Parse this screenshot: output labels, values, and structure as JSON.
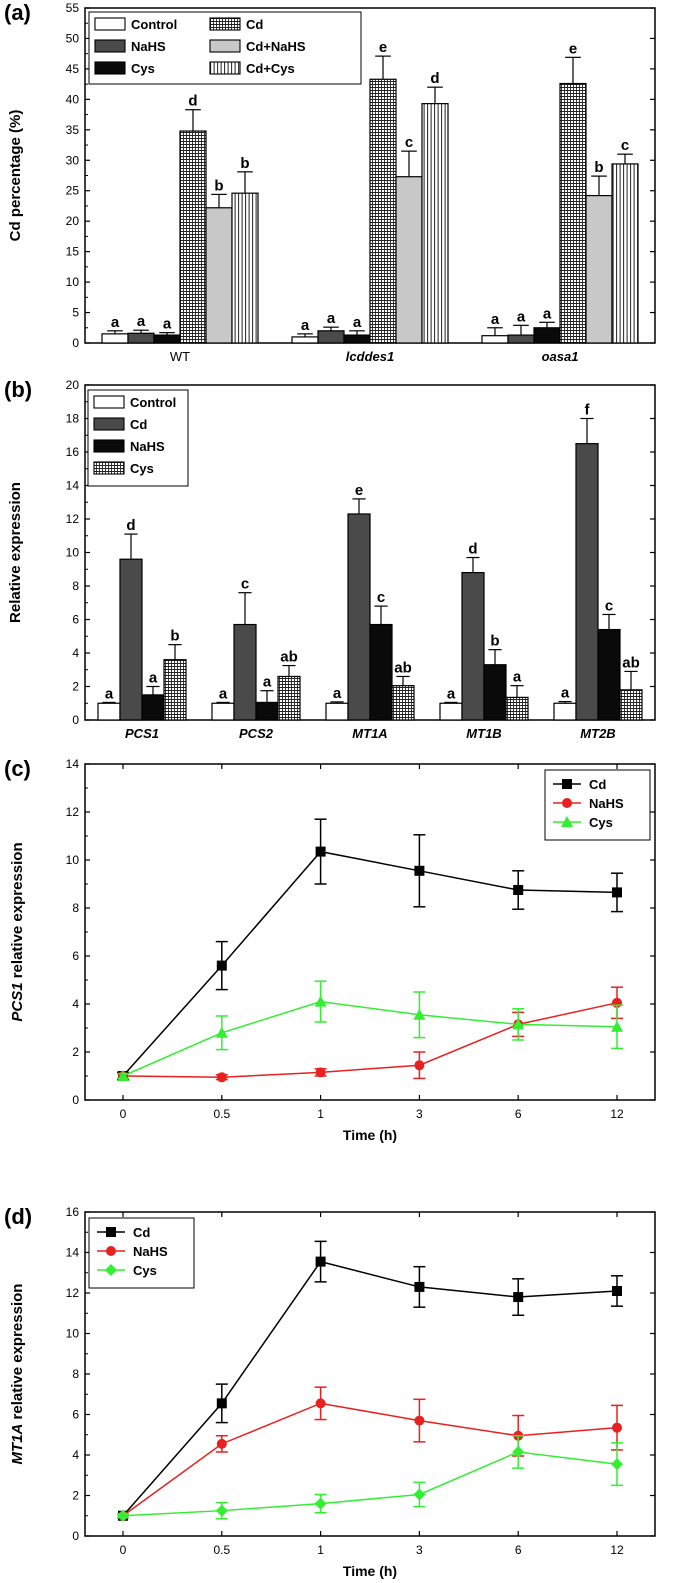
{
  "colors": {
    "control": "#ffffff",
    "nahs_bar": "#4a4a4a",
    "cys_bar": "#0a0a0a",
    "cd_nahs": "#c8c8c8",
    "dark_cd": "#474747",
    "cd_line": "#000000",
    "nahs_line": "#e8201f",
    "cys_line": "#33ee33"
  },
  "chart_data": [
    {
      "type": "bar",
      "panel_label": "(a)",
      "ylabel": "Cd percentage (%)",
      "xlabel": "",
      "ylim": [
        0,
        55
      ],
      "yticks": [
        "0",
        "5",
        "10",
        "15",
        "20",
        "25",
        "30",
        "35",
        "40",
        "45",
        "50",
        "55"
      ],
      "categories": [
        "WT",
        "lcddes1",
        "oasa1"
      ],
      "category_italic": [
        false,
        true,
        true
      ],
      "legend": [
        "Control",
        "NaHS",
        "Cys",
        "Cd",
        "Cd+NaHS",
        "Cd+Cys"
      ],
      "series": [
        {
          "name": "Control",
          "fill": "white",
          "values": [
            1.5,
            1.0,
            1.2
          ],
          "errors": [
            0.5,
            0.5,
            1.3
          ],
          "labels": [
            "a",
            "a",
            "a"
          ]
        },
        {
          "name": "NaHS",
          "fill": "darkgray",
          "values": [
            1.6,
            2.0,
            1.3
          ],
          "errors": [
            0.5,
            0.6,
            1.6
          ],
          "labels": [
            "a",
            "a",
            "a"
          ]
        },
        {
          "name": "Cys",
          "fill": "black",
          "values": [
            1.3,
            1.3,
            2.5
          ],
          "errors": [
            0.4,
            0.7,
            0.9
          ],
          "labels": [
            "a",
            "a",
            "a"
          ]
        },
        {
          "name": "Cd",
          "fill": "grid",
          "values": [
            34.8,
            43.3,
            42.6
          ],
          "errors": [
            3.5,
            3.8,
            4.3
          ],
          "labels": [
            "d",
            "e",
            "e"
          ]
        },
        {
          "name": "Cd+NaHS",
          "fill": "lightgray",
          "values": [
            22.2,
            27.3,
            24.2
          ],
          "errors": [
            2.2,
            4.2,
            3.2
          ],
          "labels": [
            "b",
            "c",
            "b"
          ]
        },
        {
          "name": "Cd+Cys",
          "fill": "vlines",
          "values": [
            24.6,
            39.3,
            29.4
          ],
          "errors": [
            3.5,
            2.7,
            1.6
          ],
          "labels": [
            "b",
            "d",
            "c"
          ]
        }
      ]
    },
    {
      "type": "bar",
      "panel_label": "(b)",
      "ylabel": "Relative expression",
      "xlabel": "",
      "ylim": [
        0,
        20
      ],
      "yticks": [
        "0",
        "2",
        "4",
        "6",
        "8",
        "10",
        "12",
        "14",
        "16",
        "18",
        "20"
      ],
      "categories": [
        "PCS1",
        "PCS2",
        "MT1A",
        "MT1B",
        "MT2B"
      ],
      "category_italic": [
        true,
        true,
        true,
        true,
        true
      ],
      "legend": [
        "Control",
        "Cd",
        "NaHS",
        "Cys"
      ],
      "series": [
        {
          "name": "Control",
          "fill": "white",
          "values": [
            1.0,
            1.0,
            1.0,
            1.0,
            1.0
          ],
          "errors": [
            0.05,
            0.05,
            0.08,
            0.05,
            0.1
          ],
          "labels": [
            "a",
            "a",
            "a",
            "a",
            "a"
          ]
        },
        {
          "name": "Cd",
          "fill": "darkgray",
          "values": [
            9.6,
            5.7,
            12.3,
            8.8,
            16.5
          ],
          "errors": [
            1.5,
            1.9,
            0.9,
            0.9,
            1.5
          ],
          "labels": [
            "d",
            "c",
            "e",
            "d",
            "f"
          ]
        },
        {
          "name": "NaHS",
          "fill": "black",
          "values": [
            1.5,
            1.05,
            5.7,
            3.3,
            5.4
          ],
          "errors": [
            0.5,
            0.7,
            1.1,
            0.9,
            0.9
          ],
          "labels": [
            "a",
            "a",
            "c",
            "b",
            "c"
          ]
        },
        {
          "name": "Cys",
          "fill": "grid",
          "values": [
            3.6,
            2.6,
            2.05,
            1.35,
            1.8
          ],
          "errors": [
            0.9,
            0.65,
            0.55,
            0.7,
            1.1
          ],
          "labels": [
            "b",
            "ab",
            "ab",
            "a",
            "ab"
          ]
        }
      ]
    },
    {
      "type": "line",
      "panel_label": "(c)",
      "ylabel_italic": "PCS1",
      "ylabel": "relative expression",
      "xlabel": "Time (h)",
      "categories": [
        "0",
        "0.5",
        "1",
        "3",
        "6",
        "12"
      ],
      "ylim": [
        0,
        14
      ],
      "yticks": [
        "0",
        "2",
        "4",
        "6",
        "8",
        "10",
        "12",
        "14"
      ],
      "legend_position": "top-right",
      "series": [
        {
          "name": "Cd",
          "color": "#000000",
          "marker": "square",
          "values": [
            1.0,
            5.6,
            10.35,
            9.55,
            8.75,
            8.65
          ],
          "errors": [
            0.15,
            1.0,
            1.35,
            1.5,
            0.8,
            0.8
          ]
        },
        {
          "name": "NaHS",
          "color": "#e8201f",
          "marker": "circle",
          "values": [
            1.0,
            0.95,
            1.15,
            1.45,
            3.15,
            4.05
          ],
          "errors": [
            0.1,
            0.1,
            0.15,
            0.55,
            0.5,
            0.65
          ]
        },
        {
          "name": "Cys",
          "color": "#33ee33",
          "marker": "triangle",
          "values": [
            1.0,
            2.8,
            4.1,
            3.55,
            3.15,
            3.05
          ],
          "errors": [
            0.1,
            0.7,
            0.85,
            0.95,
            0.65,
            0.9
          ]
        }
      ]
    },
    {
      "type": "line",
      "panel_label": "(d)",
      "ylabel_italic": "MT1A",
      "ylabel": "relative expression",
      "xlabel": "Time (h)",
      "categories": [
        "0",
        "0.5",
        "1",
        "3",
        "6",
        "12"
      ],
      "ylim": [
        0,
        16
      ],
      "yticks": [
        "0",
        "2",
        "4",
        "6",
        "8",
        "10",
        "12",
        "14",
        "16"
      ],
      "legend_position": "top-left",
      "series": [
        {
          "name": "Cd",
          "color": "#000000",
          "marker": "square",
          "values": [
            1.0,
            6.55,
            13.55,
            12.3,
            11.8,
            12.1
          ],
          "errors": [
            0.1,
            0.95,
            1.0,
            1.0,
            0.9,
            0.75
          ]
        },
        {
          "name": "NaHS",
          "color": "#e8201f",
          "marker": "circle",
          "values": [
            1.0,
            4.55,
            6.55,
            5.7,
            4.95,
            5.35
          ],
          "errors": [
            0.1,
            0.4,
            0.8,
            1.05,
            1.0,
            1.1
          ]
        },
        {
          "name": "Cys",
          "color": "#33ee33",
          "marker": "diamond",
          "values": [
            1.0,
            1.25,
            1.6,
            2.05,
            4.15,
            3.55
          ],
          "errors": [
            0.1,
            0.4,
            0.45,
            0.6,
            0.8,
            1.05
          ]
        }
      ]
    }
  ]
}
